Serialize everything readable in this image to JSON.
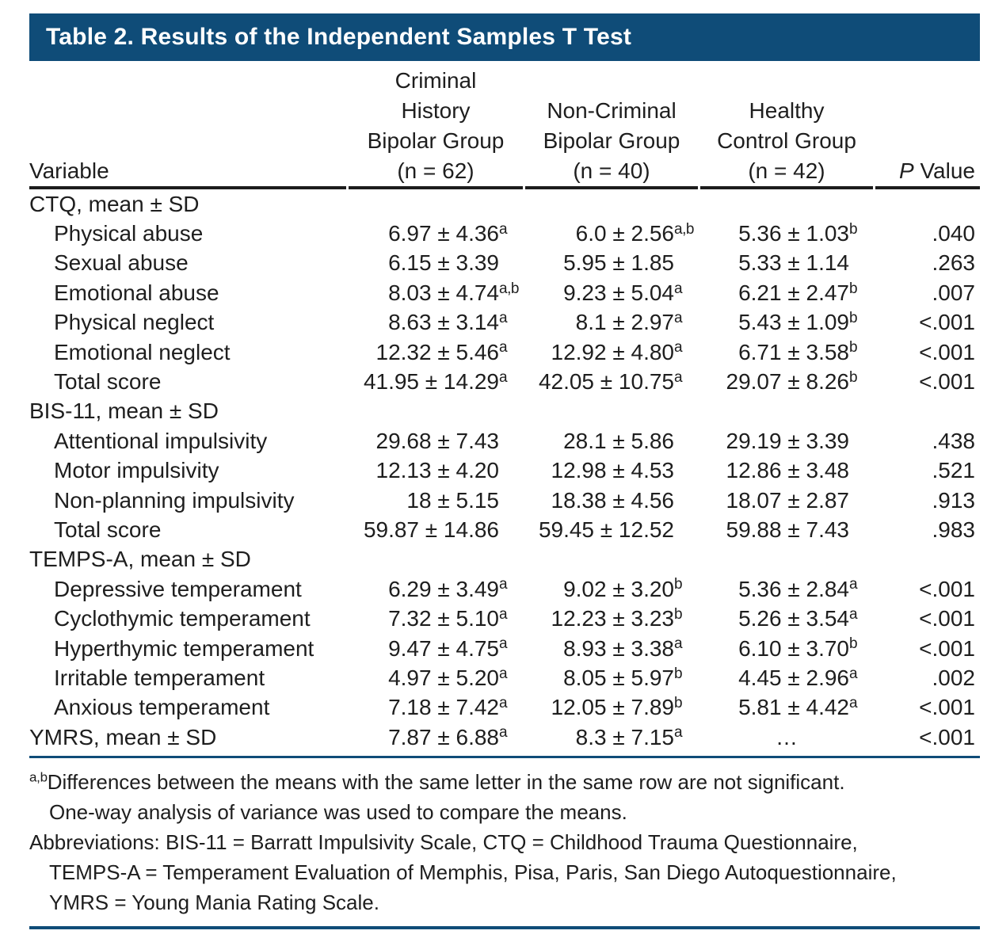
{
  "colors": {
    "accent_blue": "#0f4c78",
    "rule_black": "#1c1c1c",
    "text": "#1e1e1e",
    "title_text": "#ffffff"
  },
  "table": {
    "title": "Table 2. Results of the Independent Samples T Test",
    "columns": {
      "variable": "Variable",
      "groups": [
        {
          "lines": [
            "Criminal",
            "History",
            "Bipolar Group",
            "(n = 62)"
          ]
        },
        {
          "lines": [
            "Non-Criminal",
            "Bipolar Group",
            "(n = 40)"
          ]
        },
        {
          "lines": [
            "Healthy",
            "Control Group",
            "(n = 42)"
          ]
        }
      ],
      "p_value": {
        "italic": "P",
        "rest": " Value"
      }
    },
    "rows": [
      {
        "label": "CTQ, mean ± SD",
        "indent": false,
        "cells": [
          null,
          null,
          null
        ],
        "p": ""
      },
      {
        "label": "Physical abuse",
        "indent": true,
        "cells": [
          {
            "v": "6.97 ± 4.36",
            "sup": "a"
          },
          {
            "v": "6.0 ± 2.56",
            "sup": "a,b"
          },
          {
            "v": "5.36 ± 1.03",
            "sup": "b"
          }
        ],
        "p": ".040"
      },
      {
        "label": "Sexual abuse",
        "indent": true,
        "cells": [
          {
            "v": "6.15 ± 3.39"
          },
          {
            "v": "5.95 ± 1.85"
          },
          {
            "v": "5.33 ± 1.14"
          }
        ],
        "p": ".263"
      },
      {
        "label": "Emotional abuse",
        "indent": true,
        "cells": [
          {
            "v": "8.03 ± 4.74",
            "sup": "a,b"
          },
          {
            "v": "9.23 ± 5.04",
            "sup": "a"
          },
          {
            "v": "6.21 ± 2.47",
            "sup": "b"
          }
        ],
        "p": ".007"
      },
      {
        "label": "Physical neglect",
        "indent": true,
        "cells": [
          {
            "v": "8.63 ± 3.14",
            "sup": "a"
          },
          {
            "v": "8.1 ± 2.97",
            "sup": "a"
          },
          {
            "v": "5.43 ± 1.09",
            "sup": "b"
          }
        ],
        "p": "<.001"
      },
      {
        "label": "Emotional neglect",
        "indent": true,
        "cells": [
          {
            "v": "12.32 ± 5.46",
            "sup": "a"
          },
          {
            "v": "12.92 ± 4.80",
            "sup": "a"
          },
          {
            "v": "6.71 ± 3.58",
            "sup": "b"
          }
        ],
        "p": "<.001"
      },
      {
        "label": "Total score",
        "indent": true,
        "cells": [
          {
            "v": "41.95 ± 14.29",
            "sup": "a"
          },
          {
            "v": "42.05 ± 10.75",
            "sup": "a"
          },
          {
            "v": "29.07 ± 8.26",
            "sup": "b"
          }
        ],
        "p": "<.001"
      },
      {
        "label": "BIS-11, mean ± SD",
        "indent": false,
        "cells": [
          null,
          null,
          null
        ],
        "p": ""
      },
      {
        "label": "Attentional impulsivity",
        "indent": true,
        "cells": [
          {
            "v": "29.68 ± 7.43"
          },
          {
            "v": "28.1 ± 5.86"
          },
          {
            "v": "29.19 ± 3.39"
          }
        ],
        "p": ".438"
      },
      {
        "label": "Motor impulsivity",
        "indent": true,
        "cells": [
          {
            "v": "12.13 ± 4.20"
          },
          {
            "v": "12.98 ± 4.53"
          },
          {
            "v": "12.86 ± 3.48"
          }
        ],
        "p": ".521"
      },
      {
        "label": "Non-planning impulsivity",
        "indent": true,
        "cells": [
          {
            "v": "18 ± 5.15"
          },
          {
            "v": "18.38 ± 4.56"
          },
          {
            "v": "18.07 ± 2.87"
          }
        ],
        "p": ".913"
      },
      {
        "label": "Total score",
        "indent": true,
        "cells": [
          {
            "v": "59.87 ± 14.86"
          },
          {
            "v": "59.45 ± 12.52"
          },
          {
            "v": "59.88 ± 7.43"
          }
        ],
        "p": ".983"
      },
      {
        "label": "TEMPS-A, mean ± SD",
        "indent": false,
        "cells": [
          null,
          null,
          null
        ],
        "p": ""
      },
      {
        "label": "Depressive temperament",
        "indent": true,
        "cells": [
          {
            "v": "6.29 ± 3.49",
            "sup": "a"
          },
          {
            "v": "9.02 ± 3.20",
            "sup": "b"
          },
          {
            "v": "5.36 ± 2.84",
            "sup": "a"
          }
        ],
        "p": "<.001"
      },
      {
        "label": "Cyclothymic temperament",
        "indent": true,
        "cells": [
          {
            "v": "7.32 ± 5.10",
            "sup": "a"
          },
          {
            "v": "12.23 ± 3.23",
            "sup": "b"
          },
          {
            "v": "5.26 ± 3.54",
            "sup": "a"
          }
        ],
        "p": "<.001"
      },
      {
        "label": "Hyperthymic temperament",
        "indent": true,
        "cells": [
          {
            "v": "9.47 ± 4.75",
            "sup": "a"
          },
          {
            "v": "8.93 ± 3.38",
            "sup": "a"
          },
          {
            "v": "6.10 ± 3.70",
            "sup": "b"
          }
        ],
        "p": "<.001"
      },
      {
        "label": "Irritable temperament",
        "indent": true,
        "cells": [
          {
            "v": "4.97 ± 5.20",
            "sup": "a"
          },
          {
            "v": "8.05 ± 5.97",
            "sup": "b"
          },
          {
            "v": "4.45 ± 2.96",
            "sup": "a"
          }
        ],
        "p": ".002"
      },
      {
        "label": "Anxious temperament",
        "indent": true,
        "cells": [
          {
            "v": "7.18 ± 7.42",
            "sup": "a"
          },
          {
            "v": "12.05 ± 7.89",
            "sup": "b"
          },
          {
            "v": "5.81 ± 4.42",
            "sup": "a"
          }
        ],
        "p": "<.001"
      },
      {
        "label": "YMRS, mean ± SD",
        "indent": false,
        "cells": [
          {
            "v": "7.87 ± 6.88",
            "sup": "a"
          },
          {
            "v": "8.3 ± 7.15",
            "sup": "a"
          },
          {
            "v": "…",
            "align": "center"
          }
        ],
        "p": "<.001"
      }
    ],
    "footnotes": [
      {
        "sup": "a,b",
        "text": "Differences between the means with the same letter in the same row are not significant.",
        "indent": false
      },
      {
        "text": "One-way analysis of variance was used to compare the means.",
        "indent": true
      },
      {
        "text": "Abbreviations: BIS-11 = Barratt Impulsivity Scale, CTQ = Childhood Trauma Questionnaire,",
        "indent": false
      },
      {
        "text": "TEMPS-A = Temperament Evaluation of Memphis, Pisa, Paris, San Diego Autoquestionnaire,",
        "indent": true
      },
      {
        "text": "YMRS = Young Mania Rating Scale.",
        "indent": true
      }
    ]
  }
}
